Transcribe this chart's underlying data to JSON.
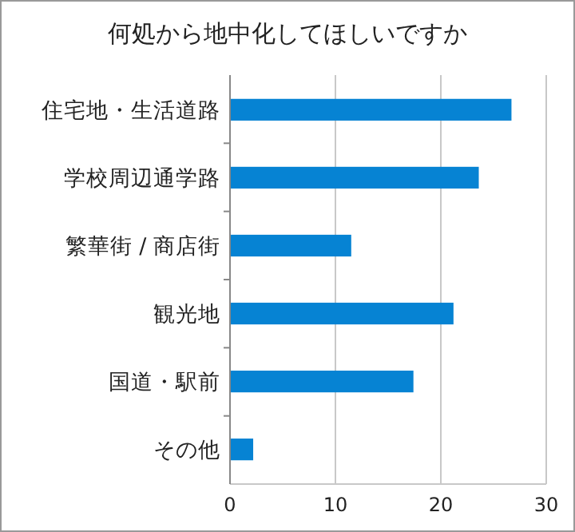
{
  "chart_data": {
    "type": "bar",
    "orientation": "horizontal",
    "title": "何処から地中化してほしいですか",
    "categories": [
      "住宅地・生活道路",
      "学校周辺通学路",
      "繁華街 / 商店街",
      "観光地",
      "国道・駅前",
      "その他"
    ],
    "values": [
      26.7,
      23.6,
      11.5,
      21.2,
      17.4,
      2.2
    ],
    "color": "#0683d3",
    "xlim": [
      0,
      30
    ],
    "xticks": [
      0,
      10,
      20,
      30
    ],
    "grid": "x"
  }
}
